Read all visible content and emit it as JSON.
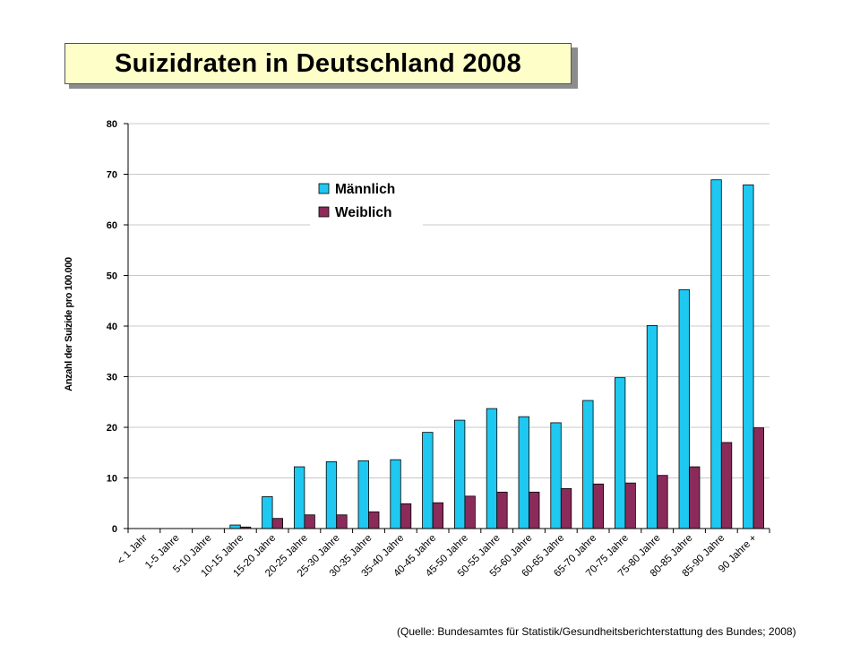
{
  "chart_data": {
    "type": "bar",
    "title": "Suizidraten in Deutschland 2008",
    "ylabel": "Anzahl der Suizide pro 100.000",
    "ylim": [
      0,
      80
    ],
    "yticks": [
      "0",
      "10",
      "20",
      "30",
      "40",
      "50",
      "60",
      "70",
      "80"
    ],
    "grid": true,
    "legend_position": "top-left",
    "categories": [
      "< 1 Jahr",
      "1-5 Jahre",
      "5-10 Jahre",
      "10-15 Jahre",
      "15-20 Jahre",
      "20-25 Jahre",
      "25-30 Jahre",
      "30-35 Jahre",
      "35-40 Jahre",
      "40-45 Jahre",
      "45-50 Jahre",
      "50-55 Jahre",
      "55-60 Jahre",
      "60-65 Jahre",
      "65-70 Jahre",
      "70-75 Jahre",
      "75-80 Jahre",
      "80-85 Jahre",
      "85-90 Jahre",
      "90 Jahre +"
    ],
    "series": [
      {
        "name": "Männlich",
        "color": "#1ec8f0",
        "values": [
          0,
          0,
          0,
          0.7,
          6.3,
          12.2,
          13.2,
          13.4,
          13.6,
          19,
          21.4,
          23.7,
          22.1,
          20.9,
          25.3,
          29.8,
          40.1,
          47.2,
          68.9,
          67.9
        ]
      },
      {
        "name": "Weiblich",
        "color": "#8b2b5a",
        "values": [
          0,
          0,
          0,
          0.3,
          2,
          2.7,
          2.7,
          3.3,
          4.9,
          5.1,
          6.4,
          7.2,
          7.2,
          7.9,
          8.8,
          9,
          10.5,
          12.2,
          17,
          19.9
        ]
      }
    ],
    "source": "(Quelle: Bundesamtes für Statistik/Gesundheitsberichterstattung des Bundes;  2008)"
  }
}
